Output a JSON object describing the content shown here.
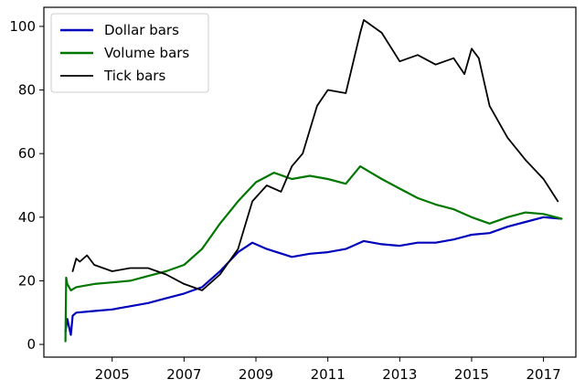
{
  "chart_data": {
    "type": "line",
    "title": "",
    "xlabel": "",
    "ylabel": "",
    "xlim": [
      2003.1,
      2017.9
    ],
    "ylim": [
      -4,
      106
    ],
    "xticks": [
      2005,
      2007,
      2009,
      2011,
      2013,
      2015,
      2017
    ],
    "yticks": [
      0,
      20,
      40,
      60,
      80,
      100
    ],
    "grid": false,
    "legend_position": "top-left",
    "series": [
      {
        "name": "Dollar bars",
        "color": "#0000bb",
        "x": [
          2003.7,
          2003.75,
          2003.85,
          2003.9,
          2004.0,
          2004.5,
          2005.0,
          2005.5,
          2006.0,
          2006.5,
          2007.0,
          2007.5,
          2008.0,
          2008.5,
          2008.9,
          2009.3,
          2010.0,
          2010.5,
          2011.0,
          2011.5,
          2012.0,
          2012.5,
          2013.0,
          2013.5,
          2014.0,
          2014.5,
          2015.0,
          2015.5,
          2016.0,
          2016.5,
          2017.0,
          2017.5
        ],
        "y": [
          4,
          8,
          3,
          9,
          10,
          10.5,
          11,
          12,
          13,
          14.5,
          16,
          18,
          23,
          29,
          32,
          30,
          27.5,
          28.5,
          29,
          30,
          32.5,
          31.5,
          31,
          32,
          32,
          33,
          34.5,
          35,
          37,
          38.5,
          40,
          39.5
        ]
      },
      {
        "name": "Volume bars",
        "color": "#007700",
        "x": [
          2003.7,
          2003.72,
          2003.75,
          2003.85,
          2004.0,
          2004.5,
          2005.0,
          2005.5,
          2006.0,
          2006.5,
          2007.0,
          2007.5,
          2008.0,
          2008.5,
          2009.0,
          2009.5,
          2010.0,
          2010.5,
          2011.0,
          2011.5,
          2011.9,
          2012.5,
          2013.0,
          2013.5,
          2014.0,
          2014.5,
          2015.0,
          2015.5,
          2016.0,
          2016.5,
          2017.0,
          2017.5
        ],
        "y": [
          1,
          21,
          19,
          17,
          18,
          19,
          19.5,
          20,
          21.5,
          23,
          25,
          30,
          38,
          45,
          51,
          54,
          52,
          53,
          52,
          50.5,
          56,
          52,
          49,
          46,
          44,
          42.5,
          40,
          38,
          40,
          41.5,
          41,
          39.5
        ]
      },
      {
        "name": "Tick bars",
        "color": "#000000",
        "x": [
          2003.9,
          2004.0,
          2004.1,
          2004.3,
          2004.5,
          2005.0,
          2005.5,
          2006.0,
          2006.5,
          2007.0,
          2007.5,
          2008.0,
          2008.5,
          2008.9,
          2009.3,
          2009.7,
          2010.0,
          2010.3,
          2010.7,
          2011.0,
          2011.5,
          2011.9,
          2012.0,
          2012.5,
          2013.0,
          2013.5,
          2014.0,
          2014.5,
          2014.8,
          2015.0,
          2015.2,
          2015.5,
          2016.0,
          2016.5,
          2017.0,
          2017.4
        ],
        "y": [
          23,
          27,
          26,
          28,
          25,
          23,
          24,
          24,
          22,
          19,
          17,
          22,
          30,
          45,
          50,
          48,
          56,
          60,
          75,
          80,
          79,
          98,
          102,
          98,
          89,
          91,
          88,
          90,
          85,
          93,
          90,
          75,
          65,
          58,
          52,
          45
        ]
      }
    ]
  }
}
